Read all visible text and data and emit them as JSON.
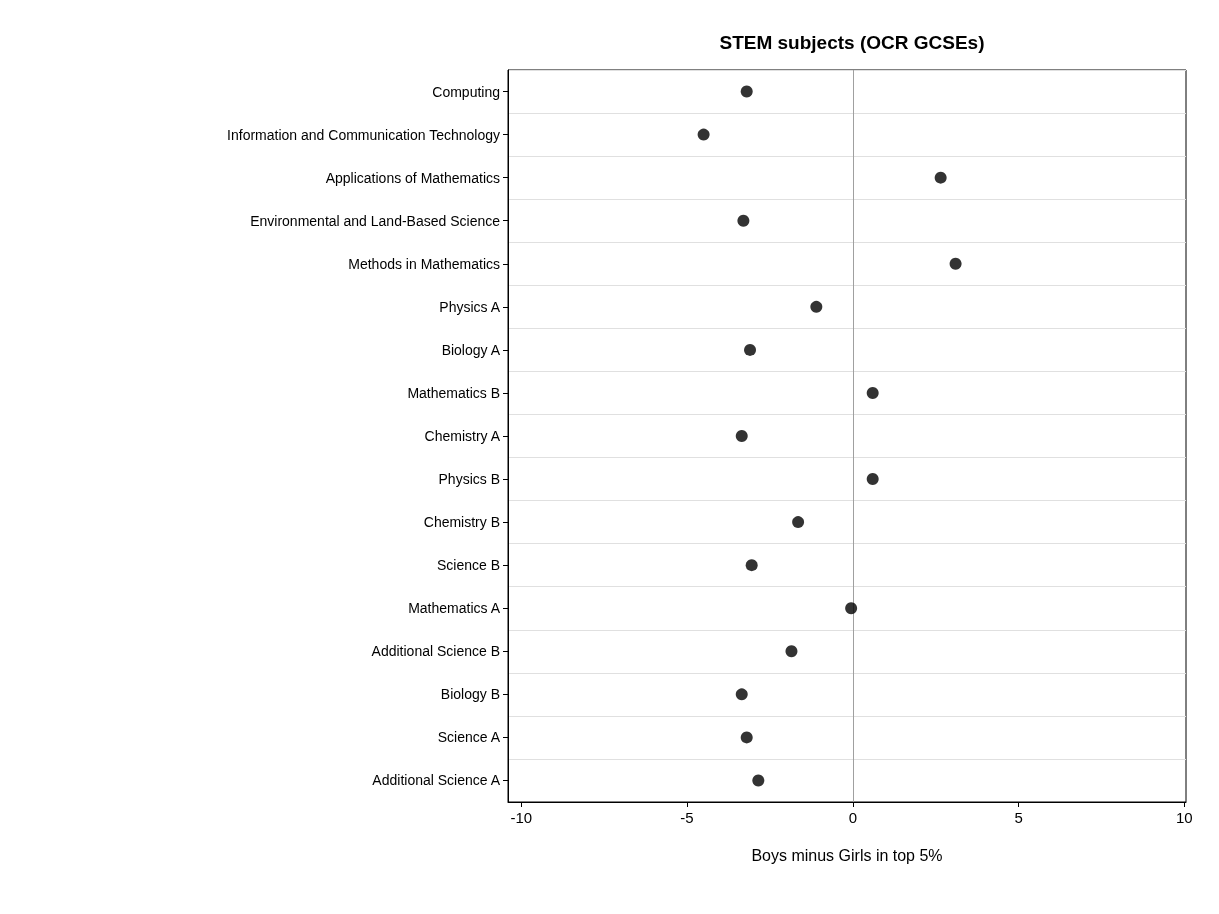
{
  "chart_data": {
    "type": "scatter",
    "title": "STEM subjects (OCR GCSEs)",
    "xlabel": "Boys minus Girls in top 5%",
    "categories": [
      "Computing",
      "Information and Communication Technology",
      "Applications of Mathematics",
      "Environmental and Land-Based Science",
      "Methods in Mathematics",
      "Physics A",
      "Biology A",
      "Mathematics B",
      "Chemistry A",
      "Physics B",
      "Chemistry B",
      "Science B",
      "Mathematics A",
      "Additional Science B",
      "Biology B",
      "Science A",
      "Additional Science A"
    ],
    "values": [
      -3.2,
      -4.5,
      2.65,
      -3.3,
      3.1,
      -1.1,
      -3.1,
      0.6,
      -3.35,
      0.6,
      -1.65,
      -3.05,
      -0.05,
      -1.85,
      -3.35,
      -3.2,
      -2.85
    ],
    "color": "#000000",
    "marker": "circle",
    "orientation": "horizontal",
    "xlim": [
      -10.4,
      10.05
    ],
    "xticks": [
      -10,
      -5,
      0,
      5,
      10
    ],
    "grid": "y",
    "ref_lines": [
      {
        "axis": "x",
        "value": 0,
        "color": "#a0a0a0"
      }
    ]
  }
}
